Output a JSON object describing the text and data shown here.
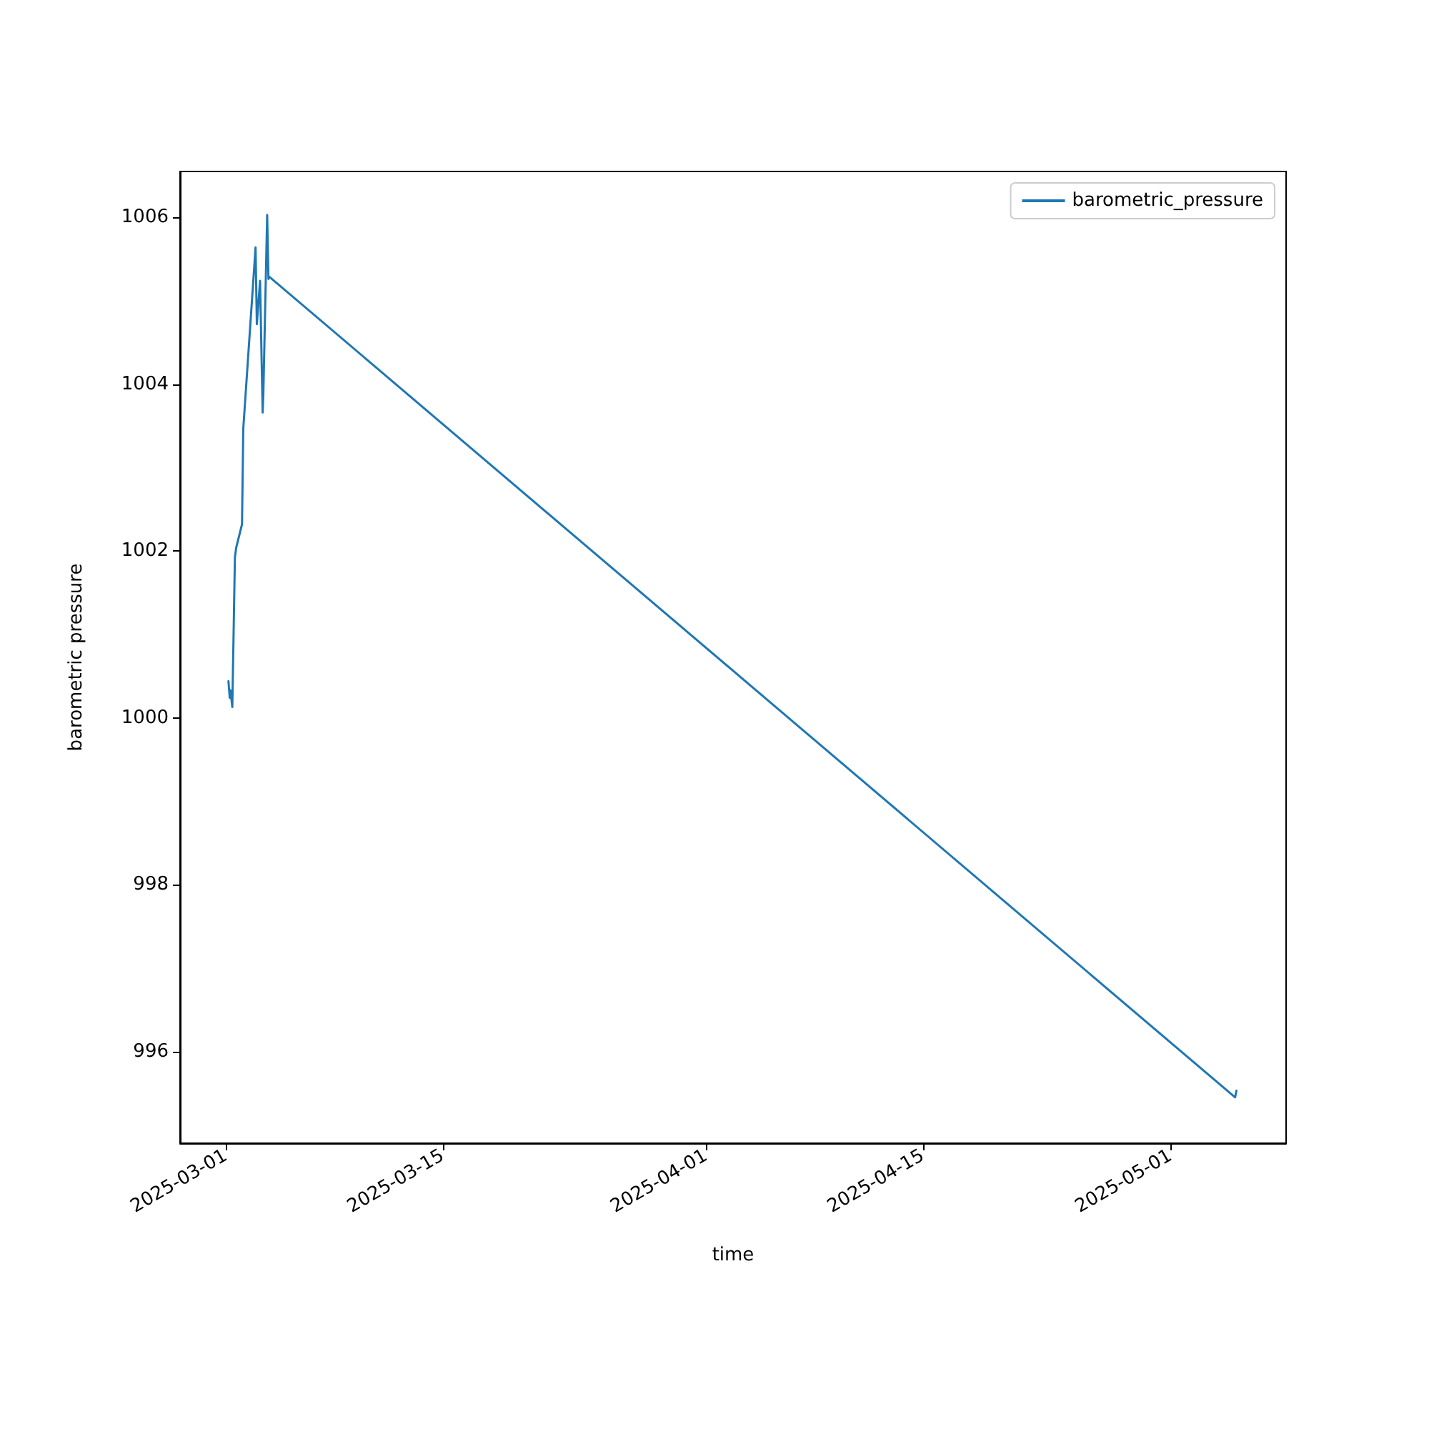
{
  "chart_data": {
    "type": "line",
    "xlabel": "time",
    "ylabel": "barometric pressure",
    "x": [
      "2025-03-01T04:00",
      "2025-03-01T06:00",
      "2025-03-01T07:00",
      "2025-03-01T10:00",
      "2025-03-01T14:00",
      "2025-03-01T16:00",
      "2025-03-02T01:00",
      "2025-03-02T03:00",
      "2025-03-02T22:00",
      "2025-03-03T00:00",
      "2025-03-03T05:00",
      "2025-03-03T09:00",
      "2025-03-03T10:00",
      "2025-03-03T16:00",
      "2025-03-03T18:00",
      "2025-03-03T19:00",
      "2025-05-05T04:00",
      "2025-05-05T06:00"
    ],
    "series": [
      {
        "name": "barometric_pressure",
        "color": "#1f77b4",
        "values": [
          1000.44,
          1000.24,
          1000.33,
          1000.13,
          1001.92,
          1002.04,
          1002.32,
          1003.47,
          1005.64,
          1004.72,
          1005.24,
          1003.66,
          1003.86,
          1006.03,
          1005.26,
          1005.29,
          995.45,
          995.53
        ]
      }
    ],
    "xlim": [
      "2025-02-26T01:00",
      "2025-05-08T11:00"
    ],
    "ylim": [
      994.9,
      1006.55
    ],
    "xticks": [
      "2025-03-01",
      "2025-03-15",
      "2025-04-01",
      "2025-04-15",
      "2025-05-01"
    ],
    "yticks": [
      996,
      998,
      1000,
      1002,
      1004,
      1006
    ],
    "grid": false,
    "legend": "top right",
    "marker": "none",
    "line_style": "solid"
  }
}
